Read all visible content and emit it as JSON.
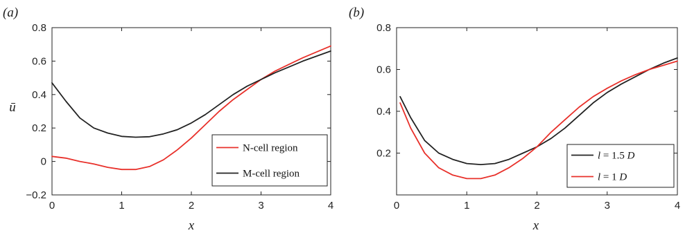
{
  "chart_data": [
    {
      "type": "line",
      "panel_label": "(a)",
      "xlabel": "x",
      "ylabel": "ū",
      "xlim": [
        0,
        4
      ],
      "ylim": [
        -0.2,
        0.8
      ],
      "xticks": [
        "0",
        "1",
        "2",
        "3",
        "4"
      ],
      "yticks": [
        "−0.2",
        "0",
        "0.2",
        "0.4",
        "0.6",
        "0.8"
      ],
      "legend_position": "bottom-right",
      "series": [
        {
          "name": "N-cell region",
          "color": "#e8302a",
          "x": [
            0,
            0.2,
            0.4,
            0.6,
            0.8,
            1.0,
            1.2,
            1.4,
            1.6,
            1.8,
            2.0,
            2.2,
            2.4,
            2.6,
            2.8,
            3.0,
            3.2,
            3.4,
            3.6,
            3.8,
            4.0
          ],
          "y": [
            0.03,
            0.02,
            0.0,
            -0.015,
            -0.035,
            -0.048,
            -0.048,
            -0.03,
            0.01,
            0.07,
            0.14,
            0.22,
            0.3,
            0.37,
            0.43,
            0.49,
            0.54,
            0.58,
            0.62,
            0.655,
            0.69
          ]
        },
        {
          "name": "M-cell region",
          "color": "#222222",
          "x": [
            0,
            0.2,
            0.4,
            0.6,
            0.8,
            1.0,
            1.2,
            1.4,
            1.6,
            1.8,
            2.0,
            2.2,
            2.4,
            2.6,
            2.8,
            3.0,
            3.2,
            3.4,
            3.6,
            3.8,
            4.0
          ],
          "y": [
            0.47,
            0.36,
            0.26,
            0.2,
            0.17,
            0.15,
            0.145,
            0.148,
            0.165,
            0.19,
            0.23,
            0.28,
            0.34,
            0.4,
            0.45,
            0.49,
            0.53,
            0.565,
            0.6,
            0.63,
            0.66
          ]
        }
      ]
    },
    {
      "type": "line",
      "panel_label": "(b)",
      "xlabel": "x",
      "ylabel": "",
      "xlim": [
        0,
        4
      ],
      "ylim": [
        0,
        0.8
      ],
      "xticks": [
        "0",
        "1",
        "2",
        "3",
        "4"
      ],
      "yticks": [
        "0.2",
        "0.4",
        "0.6",
        "0.8"
      ],
      "legend_position": "bottom-right",
      "series": [
        {
          "name": "l = 1.5 D",
          "color": "#222222",
          "x": [
            0.05,
            0.2,
            0.4,
            0.6,
            0.8,
            1.0,
            1.2,
            1.4,
            1.6,
            1.8,
            2.0,
            2.2,
            2.4,
            2.6,
            2.8,
            3.0,
            3.2,
            3.4,
            3.6,
            3.8,
            4.0
          ],
          "y": [
            0.47,
            0.37,
            0.26,
            0.2,
            0.17,
            0.15,
            0.145,
            0.15,
            0.17,
            0.2,
            0.23,
            0.27,
            0.32,
            0.38,
            0.44,
            0.49,
            0.53,
            0.565,
            0.6,
            0.63,
            0.655
          ]
        },
        {
          "name": "l = 1 D",
          "color": "#e8302a",
          "x": [
            0.05,
            0.2,
            0.4,
            0.6,
            0.8,
            1.0,
            1.2,
            1.4,
            1.6,
            1.8,
            2.0,
            2.2,
            2.4,
            2.6,
            2.8,
            3.0,
            3.2,
            3.4,
            3.6,
            3.8,
            4.0
          ],
          "y": [
            0.44,
            0.32,
            0.2,
            0.13,
            0.095,
            0.078,
            0.078,
            0.095,
            0.13,
            0.175,
            0.23,
            0.3,
            0.36,
            0.42,
            0.47,
            0.51,
            0.545,
            0.575,
            0.6,
            0.62,
            0.64
          ]
        }
      ]
    }
  ]
}
